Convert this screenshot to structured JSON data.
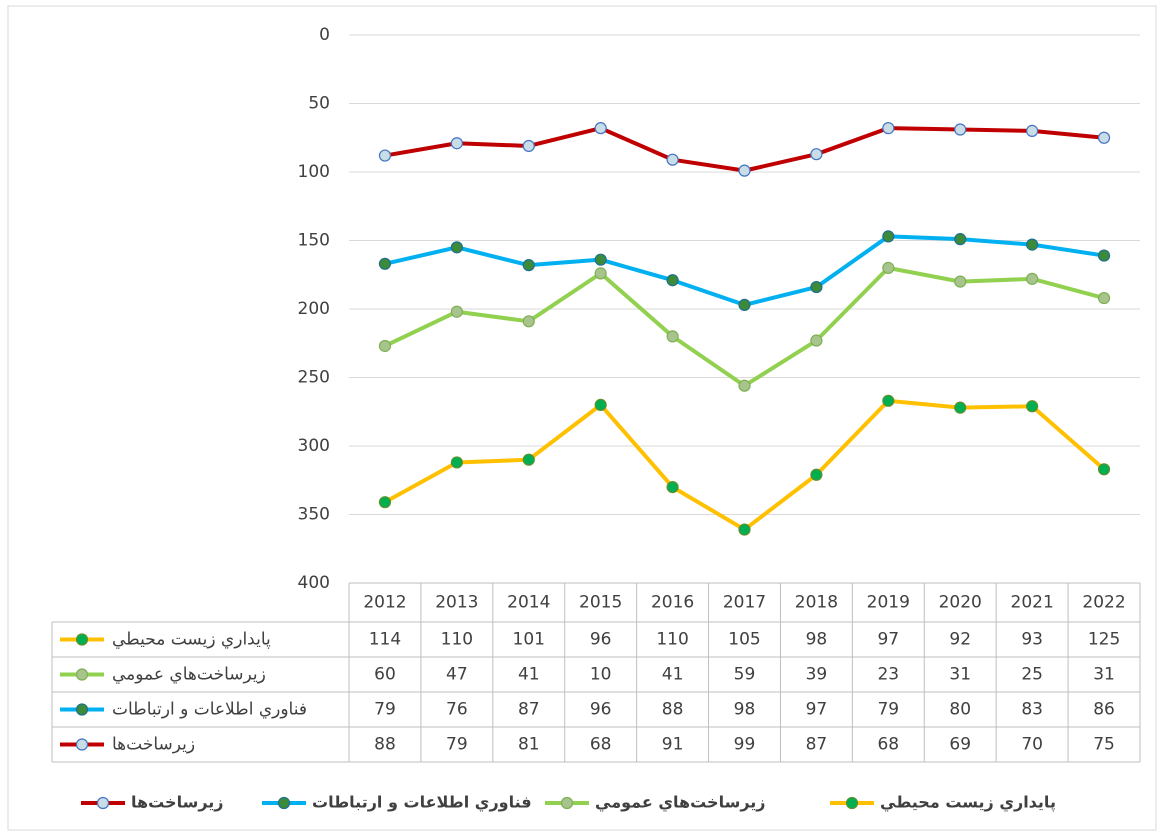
{
  "chart_data": {
    "type": "stacked_line",
    "categories": [
      "2012",
      "2013",
      "2014",
      "2015",
      "2016",
      "2017",
      "2018",
      "2019",
      "2020",
      "2021",
      "2022"
    ],
    "series": [
      {
        "name": "زیرساخت‌ها",
        "color": "#c00000",
        "marker_fill": "#c9dde6",
        "marker_stroke": "#4472c4",
        "values": [
          88,
          79,
          81,
          68,
          91,
          99,
          87,
          68,
          69,
          70,
          75
        ]
      },
      {
        "name": "فناوري اطلاعات و ارتباطات",
        "color": "#00b0f0",
        "marker_fill": "#3b8b3b",
        "marker_stroke": "#1f6f8f",
        "values": [
          79,
          76,
          87,
          96,
          88,
          98,
          97,
          79,
          80,
          83,
          86
        ]
      },
      {
        "name": "زیرساخت‌هاي عمومي",
        "color": "#92d050",
        "marker_fill": "#a6c48c",
        "marker_stroke": "#7fae55",
        "values": [
          60,
          47,
          41,
          10,
          41,
          59,
          39,
          23,
          31,
          25,
          31
        ]
      },
      {
        "name": "پايداري زيست محيطي",
        "color": "#ffc000",
        "marker_fill": "#00b050",
        "marker_stroke": "#5f8f2f",
        "values": [
          114,
          110,
          101,
          96,
          110,
          105,
          98,
          97,
          92,
          93,
          125
        ]
      }
    ],
    "ylim": [
      0,
      400
    ],
    "yticks": [
      0,
      50,
      100,
      150,
      200,
      250,
      300,
      350,
      400
    ],
    "y_inverted": true,
    "grid": true
  }
}
